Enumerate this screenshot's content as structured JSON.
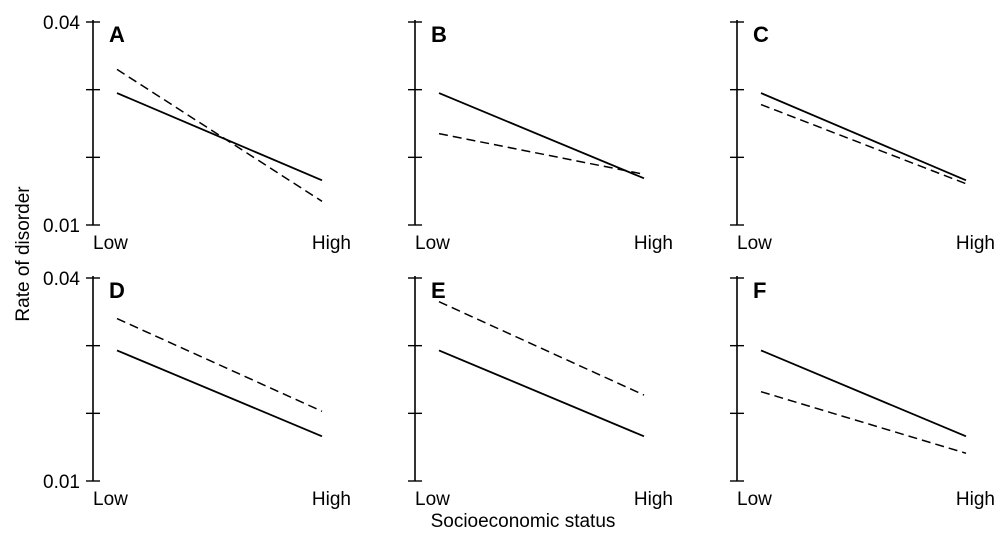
{
  "chart_data": {
    "type": "line",
    "ylabel": "Rate of disorder",
    "xlabel": "Socioeconomic status",
    "x_categories": [
      "Low",
      "High"
    ],
    "ylim": [
      0.01,
      0.04
    ],
    "y_tick_labels": [
      "0.04",
      "0.01"
    ],
    "y_tick_label_panels": [
      "A",
      "D"
    ],
    "layout": {
      "rows": 2,
      "cols": 3
    },
    "panels": [
      {
        "label": "A",
        "series": [
          {
            "style": "solid",
            "values": [
              0.0295,
              0.0166
            ]
          },
          {
            "style": "dashed",
            "values": [
              0.033,
              0.0135
            ]
          }
        ]
      },
      {
        "label": "B",
        "series": [
          {
            "style": "solid",
            "values": [
              0.0295,
              0.0169
            ]
          },
          {
            "style": "dashed",
            "values": [
              0.0235,
              0.0175
            ]
          }
        ]
      },
      {
        "label": "C",
        "series": [
          {
            "style": "solid",
            "values": [
              0.0295,
              0.0166
            ]
          },
          {
            "style": "dashed",
            "values": [
              0.0278,
              0.0161
            ]
          }
        ]
      },
      {
        "label": "D",
        "series": [
          {
            "style": "solid",
            "values": [
              0.0293,
              0.0166
            ]
          },
          {
            "style": "dashed",
            "values": [
              0.034,
              0.0203
            ]
          }
        ]
      },
      {
        "label": "E",
        "series": [
          {
            "style": "solid",
            "values": [
              0.0293,
              0.0166
            ]
          },
          {
            "style": "dashed",
            "values": [
              0.0365,
              0.0227
            ]
          }
        ]
      },
      {
        "label": "F",
        "series": [
          {
            "style": "solid",
            "values": [
              0.0293,
              0.0166
            ]
          },
          {
            "style": "dashed",
            "values": [
              0.0232,
              0.0141
            ]
          }
        ]
      }
    ]
  }
}
